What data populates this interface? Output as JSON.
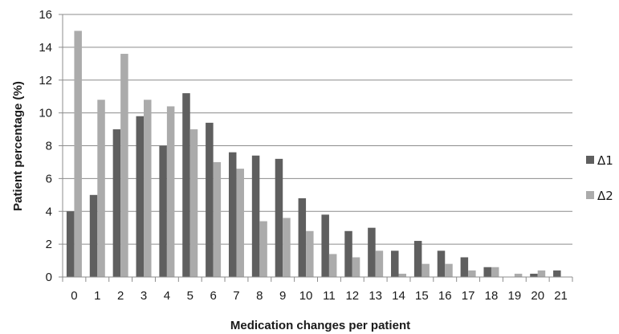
{
  "chart_data": {
    "type": "bar",
    "xlabel": "Medication changes per patient",
    "ylabel": "Patient percentage (%)",
    "categories": [
      "0",
      "1",
      "2",
      "3",
      "4",
      "5",
      "6",
      "7",
      "8",
      "9",
      "10",
      "11",
      "12",
      "13",
      "14",
      "15",
      "16",
      "17",
      "18",
      "19",
      "20",
      "21"
    ],
    "yticks": [
      "0",
      "2",
      "4",
      "6",
      "8",
      "10",
      "12",
      "14",
      "16"
    ],
    "ylim": [
      0,
      16
    ],
    "grid": true,
    "legend_position": "right",
    "series": [
      {
        "name": "Δ1",
        "color": "#5f5f5f",
        "values": [
          4.0,
          5.0,
          9.0,
          9.8,
          8.0,
          11.2,
          9.4,
          7.6,
          7.4,
          7.2,
          4.8,
          3.8,
          2.8,
          3.0,
          1.6,
          2.2,
          1.6,
          1.2,
          0.6,
          0.0,
          0.2,
          0.4
        ]
      },
      {
        "name": "Δ2",
        "color": "#ababab",
        "values": [
          15.0,
          10.8,
          13.6,
          10.8,
          10.4,
          9.0,
          7.0,
          6.6,
          3.4,
          3.6,
          2.8,
          1.4,
          1.2,
          1.6,
          0.2,
          0.8,
          0.8,
          0.4,
          0.6,
          0.2,
          0.4,
          0.0
        ]
      }
    ]
  }
}
